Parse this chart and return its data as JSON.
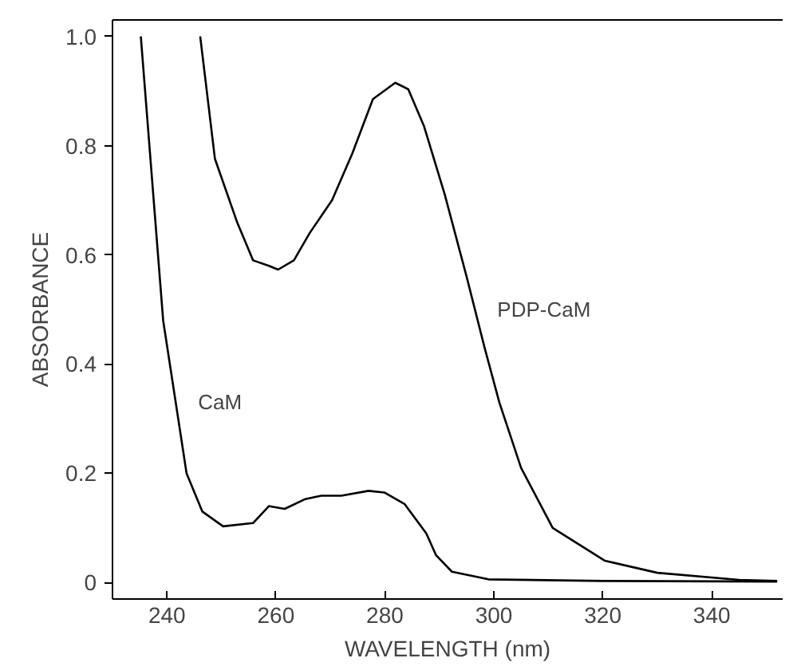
{
  "chart_data": {
    "type": "line",
    "xlabel": "WAVELENGTH (nm)",
    "ylabel": "ABSORBANCE",
    "xlim": [
      230,
      353
    ],
    "ylim": [
      -0.03,
      1.03
    ],
    "xticks": [
      240,
      260,
      280,
      300,
      320,
      340
    ],
    "yticks": [
      0,
      0.2,
      0.4,
      0.6,
      0.8,
      {
        "value": 1.0,
        "label": "1.0"
      }
    ],
    "grid": false,
    "marker": "none",
    "line_style": "solid",
    "series": [
      {
        "name": "CaM",
        "color": "#000000",
        "x": [
          235.2,
          239.3,
          243.6,
          246.5,
          250.3,
          255.8,
          258.7,
          261.6,
          265.4,
          268.3,
          272,
          277,
          279.9,
          283.6,
          287.6,
          289.4,
          292.3,
          299,
          320,
          352
        ],
        "values": [
          1.0,
          0.48,
          0.2,
          0.13,
          0.103,
          0.109,
          0.14,
          0.135,
          0.153,
          0.159,
          0.159,
          0.168,
          0.165,
          0.144,
          0.09,
          0.05,
          0.02,
          0.006,
          0.003,
          0.002
        ]
      },
      {
        "name": "PDP-CaM",
        "color": "#000000",
        "x": [
          246.1,
          248.8,
          252.9,
          255.8,
          258.7,
          260.4,
          263.3,
          266.2,
          270.3,
          274,
          277.8,
          281.9,
          284.3,
          287.2,
          291,
          295,
          298.3,
          301,
          305,
          310.8,
          320.4,
          330,
          345,
          352
        ],
        "values": [
          1.0,
          0.776,
          0.659,
          0.59,
          0.58,
          0.573,
          0.59,
          0.64,
          0.7,
          0.785,
          0.885,
          0.915,
          0.903,
          0.835,
          0.71,
          0.56,
          0.43,
          0.33,
          0.21,
          0.1,
          0.04,
          0.018,
          0.005,
          0.003
        ]
      }
    ]
  }
}
